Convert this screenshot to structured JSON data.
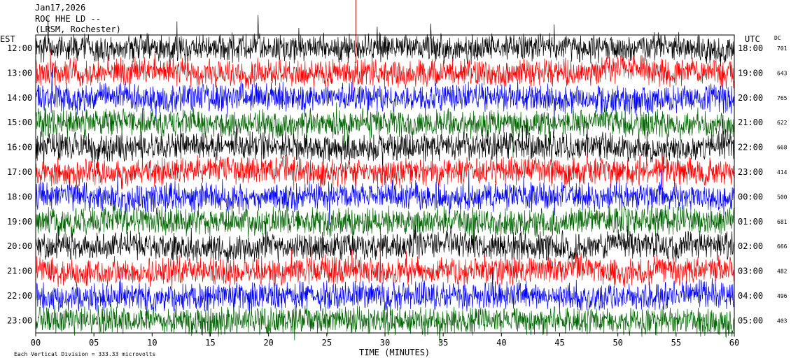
{
  "header": {
    "date": "Jan17,2026",
    "station": "ROC HHE LD --",
    "location": "(LRSM, Rochester)"
  },
  "axes": {
    "left_label": "EST",
    "right_label": "UTC",
    "dc_label": "DC",
    "x_label": "TIME (MINUTES)",
    "footer_note": "Each Vertical Division = 333.33 microvolts",
    "x_ticks": [
      "00",
      "05",
      "10",
      "15",
      "20",
      "25",
      "30",
      "35",
      "40",
      "45",
      "50",
      "55",
      "60"
    ]
  },
  "colors": {
    "black": "#000000",
    "red": "#ff0000",
    "blue": "#0000ff",
    "green": "#006400"
  },
  "chart_data": {
    "type": "line",
    "description_kind": "helicorder",
    "x": {
      "unit": "minutes",
      "range": [
        0,
        60
      ],
      "ticks": [
        0,
        5,
        10,
        15,
        20,
        25,
        30,
        35,
        40,
        45,
        50,
        55,
        60
      ]
    },
    "rows": [
      {
        "est": "12:00",
        "utc": "18:00",
        "dc": "701",
        "color": "#000000"
      },
      {
        "est": "13:00",
        "utc": "19:00",
        "dc": "643",
        "color": "#ff0000"
      },
      {
        "est": "14:00",
        "utc": "20:00",
        "dc": "765",
        "color": "#0000ff"
      },
      {
        "est": "15:00",
        "utc": "21:00",
        "dc": "622",
        "color": "#006400"
      },
      {
        "est": "16:00",
        "utc": "22:00",
        "dc": "668",
        "color": "#000000"
      },
      {
        "est": "17:00",
        "utc": "23:00",
        "dc": "414",
        "color": "#ff0000"
      },
      {
        "est": "18:00",
        "utc": "00:00",
        "dc": "500",
        "color": "#0000ff"
      },
      {
        "est": "19:00",
        "utc": "01:00",
        "dc": "681",
        "color": "#006400"
      },
      {
        "est": "20:00",
        "utc": "02:00",
        "dc": "666",
        "color": "#000000"
      },
      {
        "est": "21:00",
        "utc": "03:00",
        "dc": "482",
        "color": "#ff0000"
      },
      {
        "est": "22:00",
        "utc": "04:00",
        "dc": "496",
        "color": "#0000ff"
      },
      {
        "est": "23:00",
        "utc": "05:00",
        "dc": "403",
        "color": "#006400"
      }
    ]
  }
}
